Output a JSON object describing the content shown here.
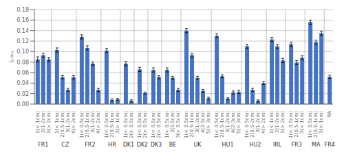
{
  "chart_data": {
    "type": "bar",
    "ylabel": "Iₕ=₀",
    "color": "#4472C4",
    "grid": true,
    "ylim": [
      0,
      0.18
    ],
    "yticks": [
      {
        "value": 0,
        "label": "0.00"
      },
      {
        "value": 0.02,
        "label": "0.02"
      },
      {
        "value": 0.04,
        "label": "0.04"
      },
      {
        "value": 0.06,
        "label": "0.06"
      },
      {
        "value": 0.08,
        "label": "0.08"
      },
      {
        "value": 0.1,
        "label": "0.10"
      },
      {
        "value": 0.12,
        "label": "0.12"
      },
      {
        "value": 0.14,
        "label": "0.14"
      },
      {
        "value": 0.16,
        "label": "0.16"
      },
      {
        "value": 0.18,
        "label": "0.18"
      }
    ],
    "groups": [
      {
        "label": "FR1",
        "categories": [
          "1(< 1cm)",
          "2(1-2cm)",
          "3(> 2cm)"
        ],
        "values": [
          0.085,
          0.093,
          0.085
        ],
        "errors": [
          0.005,
          0.004,
          0.004
        ]
      },
      {
        "label": "CZ",
        "categories": [
          "1(< 1cm)",
          "2(0.5-1cm)",
          "3(1-2cm)",
          "4(> 2cm)"
        ],
        "values": [
          0.103,
          0.051,
          0.027,
          0.051
        ],
        "errors": [
          0.004,
          0.003,
          0.003,
          0.003
        ]
      },
      {
        "label": "FR2",
        "categories": [
          "1(< 0.5cm)",
          "2(0.5-1cm)",
          "3(1-2cm)",
          "4(> 2cm)"
        ],
        "values": [
          0.128,
          0.107,
          0.077,
          0.027
        ],
        "errors": [
          0.004,
          0.004,
          0.003,
          0.003
        ]
      },
      {
        "label": "HR",
        "categories": [
          "1(< 0.5cm)",
          "2(0.5-1cm)",
          "3(> 1cm)"
        ],
        "values": [
          0.102,
          0.008,
          0.009
        ],
        "errors": [
          0.004,
          0.002,
          0.002
        ]
      },
      {
        "label": "DK1",
        "categories": [
          "1(< 0.5cm)",
          "2(> 0.5cm)"
        ],
        "values": [
          0.077,
          0.006
        ],
        "errors": [
          0.004,
          0.002
        ]
      },
      {
        "label": "DK2",
        "categories": [
          "1(< 0.5cm)",
          "2(> 0.5cm)"
        ],
        "values": [
          0.066,
          0.021
        ],
        "errors": [
          0.004,
          0.002
        ]
      },
      {
        "label": "DK3",
        "categories": [
          "1(< 0.5cm)",
          "2(> 0.5cm)"
        ],
        "values": [
          0.065,
          0.051
        ],
        "errors": [
          0.004,
          0.003
        ]
      },
      {
        "label": "BE",
        "categories": [
          "1(< 0.5cm)",
          "2(0.5cm)",
          "3(> 0.5cm)"
        ],
        "values": [
          0.065,
          0.05,
          0.027
        ],
        "errors": [
          0.004,
          0.003,
          0.003
        ]
      },
      {
        "label": "UK",
        "categories": [
          "1(< 0.5cm)",
          "2(0.5-1cm)",
          "3(1-2cm)",
          "4(2-3cm)",
          "5(> 3cm)"
        ],
        "values": [
          0.14,
          0.093,
          0.05,
          0.025,
          0.011
        ],
        "errors": [
          0.004,
          0.004,
          0.003,
          0.003,
          0.002
        ]
      },
      {
        "label": "HU1",
        "categories": [
          "1(< 0.5cm)",
          "2(0.5-1cm)",
          "3(1-2cm)",
          "4(2-3cm)",
          "5(> 3cm)"
        ],
        "values": [
          0.13,
          0.053,
          0.01,
          0.022,
          0.023
        ],
        "errors": [
          0.004,
          0.003,
          0.002,
          0.003,
          0.003
        ]
      },
      {
        "label": "HU2",
        "categories": [
          "1(< 0.5cm)",
          "2(0.5-2cm)",
          "3(1-2cm)",
          "4(> 2cm)"
        ],
        "values": [
          0.11,
          0.027,
          0.006,
          0.04
        ],
        "errors": [
          0.004,
          0.003,
          0.002,
          0.003
        ]
      },
      {
        "label": "IRL",
        "categories": [
          "1(< 1cm)",
          "2(1-2cm)",
          "3(> 2cm)"
        ],
        "values": [
          0.123,
          0.11,
          0.083
        ],
        "errors": [
          0.004,
          0.004,
          0.004
        ]
      },
      {
        "label": "FR3",
        "categories": [
          "1(< 0.5cm)",
          "2(0.5-1cm)",
          "3(> 1cm)"
        ],
        "values": [
          0.114,
          0.079,
          0.088
        ],
        "errors": [
          0.004,
          0.004,
          0.004
        ]
      },
      {
        "label": "MA",
        "categories": [
          "1(< 0.5cm)",
          "2(0.5-1cm)",
          "3(> 1cm)"
        ],
        "values": [
          0.156,
          0.118,
          0.135
        ],
        "errors": [
          0.004,
          0.004,
          0.004
        ]
      },
      {
        "label": "FR4",
        "categories": [
          "RA"
        ],
        "values": [
          0.052
        ],
        "errors": [
          0.003
        ]
      }
    ]
  }
}
